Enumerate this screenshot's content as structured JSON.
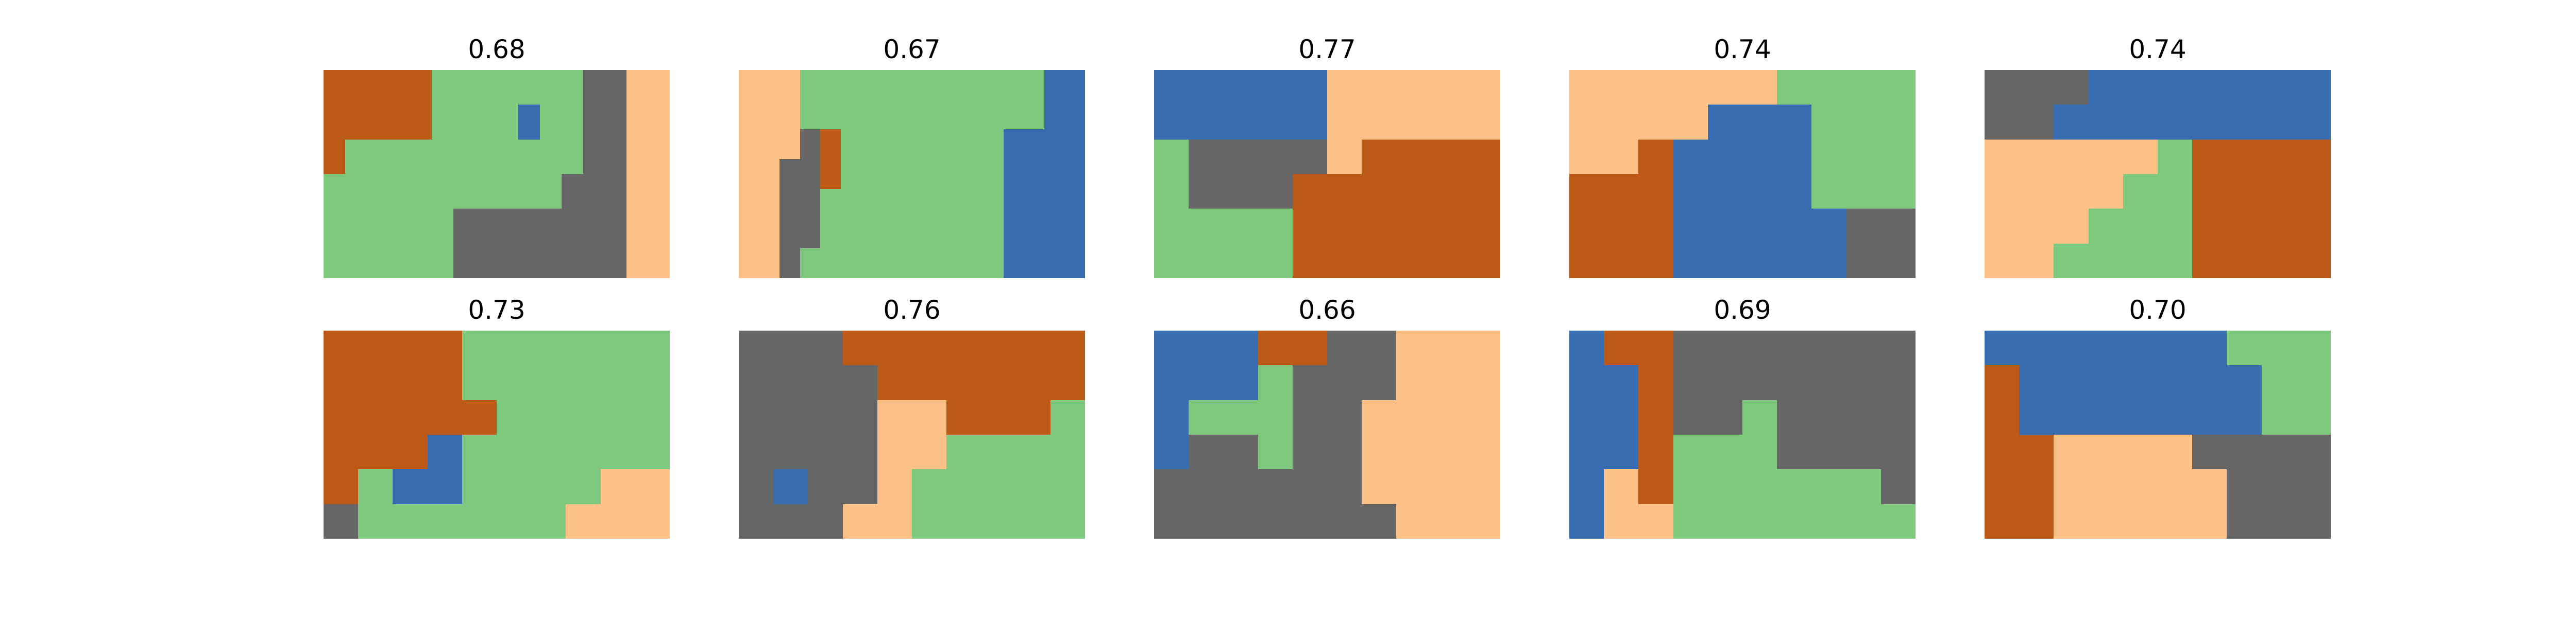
{
  "palette": {
    "O": "#bd5917",
    "G": "#7fc97f",
    "B": "#386cb0",
    "D": "#666666",
    "P": "#fdc086"
  },
  "panels": [
    {
      "score": "0.68",
      "grid": [
        "OOOOOGGGGGGGDDPP",
        "OOOOOGGGGBGGDDPP",
        "OGGGGGGGGGGGDDPP",
        "GGGGGGGGGGGDDDPP",
        "GGGGGGDDDDDDDDPP",
        "GGGGGGDDDDDDDDPP"
      ]
    },
    {
      "score": "0.67",
      "grid": [
        "PPPGGGGGGGGGGGGBB",
        "PPPGGGGGGGGGGGGBB",
        "PPPDOGGGGGGGGBBBB",
        "PPDDOGGGGGGGGBBBB",
        "PPDDGGGGGGGGGBBBB",
        "PPDDGGGGGGGGGBBBB",
        "PPDGGGGGGGGGGBBBB"
      ]
    },
    {
      "score": "0.77",
      "grid": [
        "BBBBBPPPPP",
        "BBBBBPPPPP",
        "GDDDDPOOOO",
        "GDDDOOOOOO",
        "GGGGOOOOOO",
        "GGGGOOOOOO"
      ]
    },
    {
      "score": "0.74",
      "grid": [
        "PPPPPPGGGG",
        "PPPPBBBGGG",
        "PPOBBBBGGG",
        "OOOBBBBGGG",
        "OOOBBBBBDD",
        "OOOBBBBBDD"
      ]
    },
    {
      "score": "0.74",
      "grid": [
        "DDDBBBBBBB",
        "DDBBBBBBBB",
        "PPPPPGOOOO",
        "PPPPGGOOOO",
        "PPPGGGOOOO",
        "PPGGGGOOOO"
      ]
    },
    {
      "score": "0.73",
      "grid": [
        "OOOOGGGGGG",
        "OOOOGGGGGG",
        "OOOOOGGGGG",
        "OOOBGGGGGG",
        "OGBBGGGGPP",
        "DGGGGGGPPP"
      ]
    },
    {
      "score": "0.76",
      "grid": [
        "DDDOOOOOOO",
        "DDDDOOOOOO",
        "DDDDPPOOOG",
        "DDDDPPGGGG",
        "DBDDPGGGGG",
        "DDDPPGGGGG"
      ]
    },
    {
      "score": "0.66",
      "grid": [
        "BBBOODDPPP",
        "BBBGDDDPPP",
        "BGGGDDPPPP",
        "BDDGDDPPPP",
        "DDDDDDPPPP",
        "DDDDDDDPPP"
      ]
    },
    {
      "score": "0.69",
      "grid": [
        "BOODDDDDDD",
        "BBODDDDDDD",
        "BBODDGDDDD",
        "BBOGGGDDDD",
        "BPOGGGGGGD",
        "BPPGGGGGGG"
      ]
    },
    {
      "score": "0.70",
      "grid": [
        "BBBBBBBGGG",
        "OBBBBBBBGG",
        "OBBBBBBBGG",
        "OOPPPPDDDD",
        "OOPPPPPDDD",
        "OOPPPPPDDD"
      ]
    }
  ]
}
